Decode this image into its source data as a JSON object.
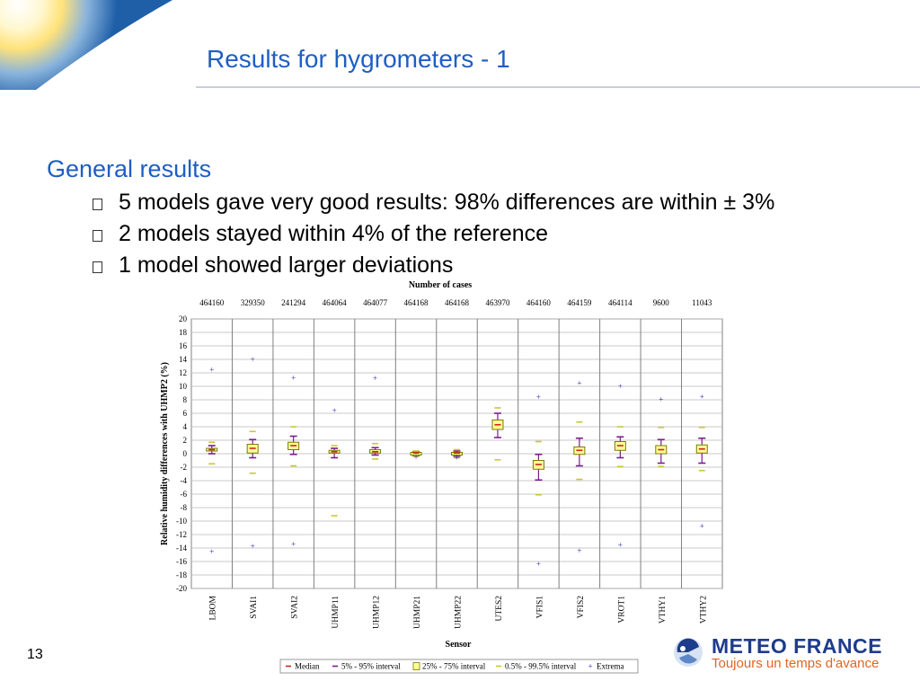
{
  "slide": {
    "title": "Results for hygrometers - 1",
    "page_number": "13"
  },
  "content": {
    "heading": "General results",
    "bullets": [
      "5 models gave very good results: 98% differences are within ±  3%",
      "2 models stayed within 4% of the reference",
      "1 model showed larger deviations"
    ]
  },
  "logo": {
    "name": "METEO FRANCE",
    "tagline": "Toujours un temps d'avance"
  },
  "colors": {
    "title": "#1f5ec4",
    "median": "#d42020",
    "p5_95": "#7a1f8a",
    "iqr_fill": "#ffff99",
    "iqr_stroke": "#7a7a00",
    "p05_995": "#c8c832",
    "extrema": "#2a2ab0"
  },
  "chart_data": {
    "type": "box",
    "title": "",
    "top_label": "Number of cases",
    "xlabel": "Sensor",
    "ylabel": "Relative humidity differences with UHMP2 (%)",
    "ylim": [
      -20,
      20
    ],
    "yticks": [
      20,
      18,
      16,
      14,
      12,
      10,
      8,
      6,
      4,
      2,
      0,
      -2,
      -4,
      -6,
      -8,
      -10,
      -12,
      -14,
      -16,
      -18,
      -20
    ],
    "grid": true,
    "legend_position": "bottom",
    "categories": [
      "LBOM",
      "SVAI1",
      "SVAI2",
      "UHMP11",
      "UHMP12",
      "UHMP21",
      "UHMP22",
      "UTES2",
      "VFIS1",
      "VFIS2",
      "VROT1",
      "VTHY1",
      "VTHY2"
    ],
    "cases": [
      "464160",
      "329350",
      "241294",
      "464064",
      "464077",
      "464168",
      "464168",
      "463970",
      "464160",
      "464159",
      "464114",
      "9600",
      "11043"
    ],
    "series": [
      {
        "name": "Median",
        "values": [
          0.6,
          0.8,
          1.2,
          0.3,
          0.3,
          0.1,
          0.1,
          4.3,
          -1.6,
          0.5,
          1.2,
          0.6,
          0.7
        ]
      },
      {
        "name": "5% - 95% interval",
        "low": [
          0.0,
          -0.6,
          -0.1,
          -0.6,
          -0.2,
          -0.3,
          -0.4,
          2.4,
          -3.9,
          -1.8,
          -0.6,
          -1.4,
          -1.4
        ],
        "high": [
          1.2,
          2.1,
          2.6,
          0.8,
          0.9,
          0.3,
          0.4,
          6.0,
          -0.1,
          2.3,
          2.5,
          2.1,
          2.3
        ]
      },
      {
        "name": "25% - 75% interval",
        "low": [
          0.4,
          0.1,
          0.6,
          0.1,
          0.1,
          0.0,
          -0.1,
          3.6,
          -2.3,
          -0.1,
          0.5,
          0.0,
          0.1
        ],
        "high": [
          0.8,
          1.4,
          1.7,
          0.5,
          0.6,
          0.2,
          0.2,
          5.0,
          -1.0,
          1.0,
          1.8,
          1.2,
          1.3
        ]
      },
      {
        "name": "0.5% - 99.5% interval",
        "low": [
          -1.5,
          -2.9,
          -1.8,
          -9.2,
          -0.8,
          -0.4,
          -0.6,
          -0.9,
          -6.1,
          -3.8,
          -1.9,
          -1.9,
          -2.5
        ],
        "high": [
          1.7,
          3.3,
          4.0,
          1.2,
          1.5,
          0.4,
          0.6,
          6.8,
          1.8,
          4.7,
          4.0,
          3.9,
          3.9
        ]
      },
      {
        "name": "Extrema",
        "low": [
          -14.5,
          -13.7,
          -13.4,
          null,
          null,
          -0.5,
          -0.6,
          null,
          -16.3,
          -14.4,
          -13.5,
          null,
          -10.7
        ],
        "high": [
          12.5,
          14.0,
          11.3,
          6.4,
          11.2,
          null,
          null,
          null,
          8.4,
          10.5,
          10.0,
          8.1,
          8.5
        ]
      }
    ]
  }
}
